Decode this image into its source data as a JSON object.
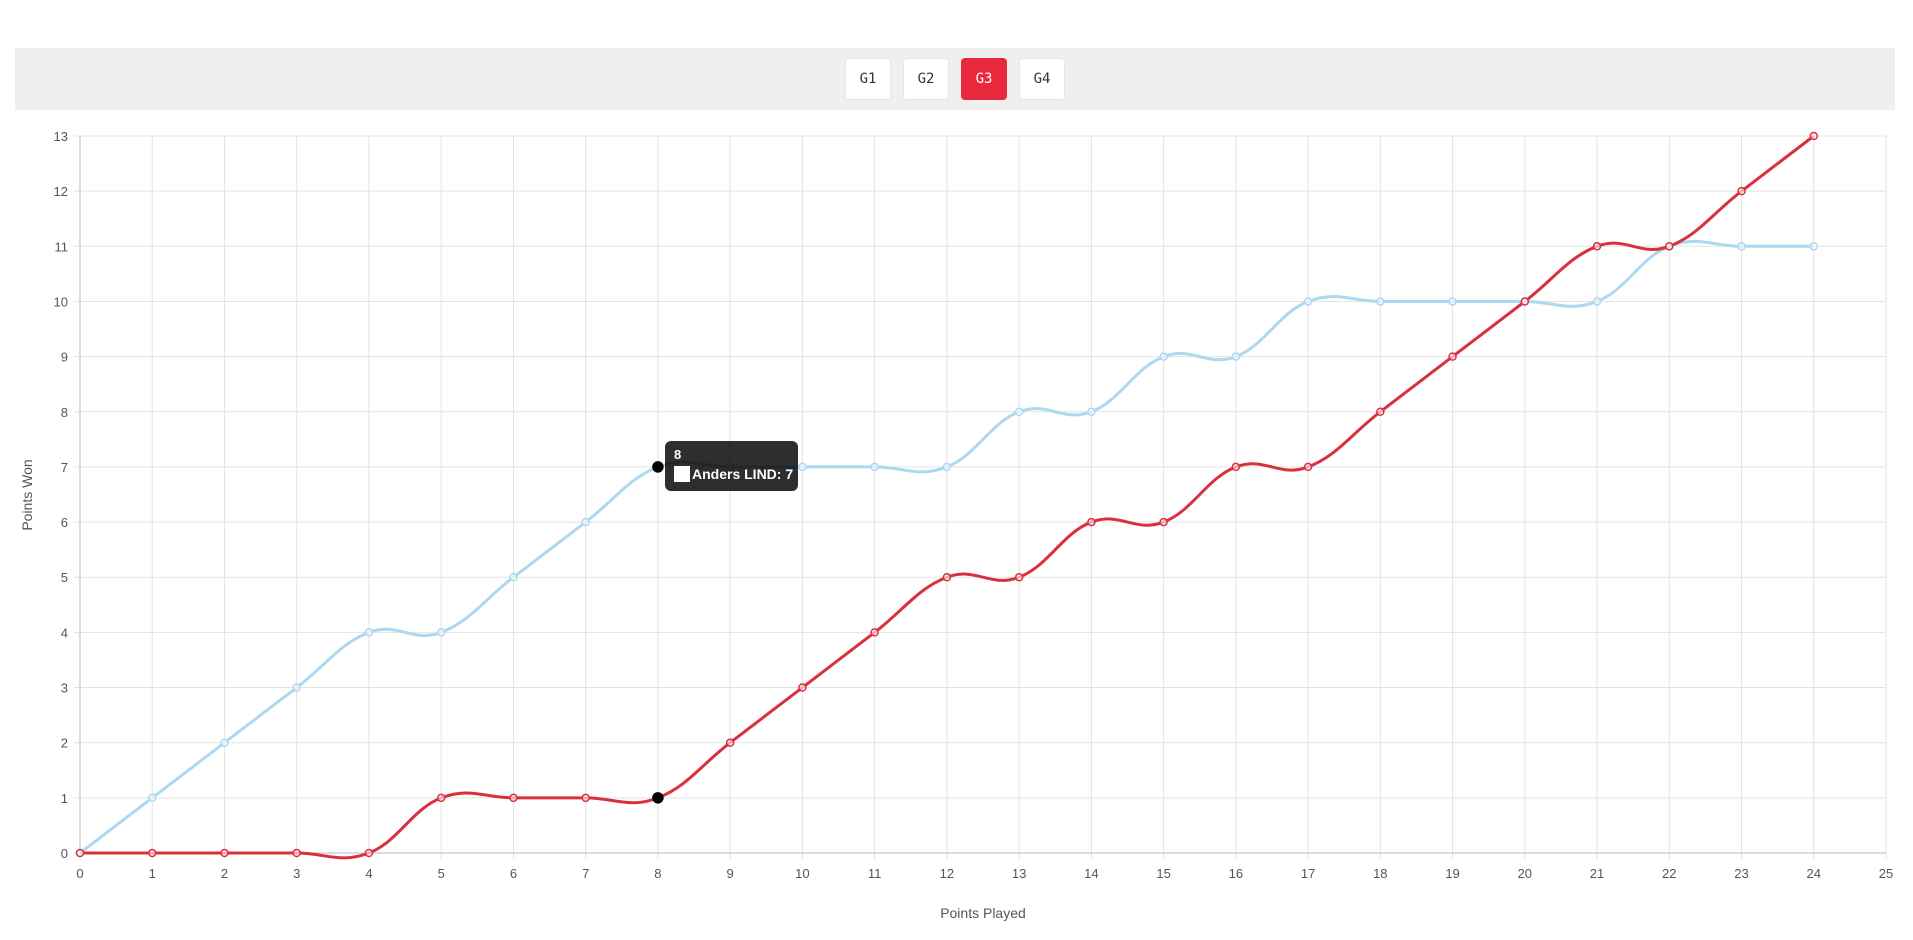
{
  "tabs": [
    {
      "label": "G1",
      "active": false
    },
    {
      "label": "G2",
      "active": false
    },
    {
      "label": "G3",
      "active": true
    },
    {
      "label": "G4",
      "active": false
    }
  ],
  "chart_data": {
    "type": "line",
    "xlabel": "Points Played",
    "ylabel": "Points Won",
    "xlim": [
      0,
      25
    ],
    "ylim": [
      0,
      13
    ],
    "grid": true,
    "x": [
      0,
      1,
      2,
      3,
      4,
      5,
      6,
      7,
      8,
      9,
      10,
      11,
      12,
      13,
      14,
      15,
      16,
      17,
      18,
      19,
      20,
      21,
      22,
      23,
      24
    ],
    "series": [
      {
        "name": "Anders LIND",
        "color": "#acd8f0",
        "values": [
          0,
          1,
          2,
          3,
          4,
          4,
          5,
          6,
          7,
          7,
          7,
          7,
          7,
          8,
          8,
          9,
          9,
          10,
          10,
          10,
          10,
          10,
          11,
          11,
          11
        ]
      },
      {
        "color": "#d9303f",
        "values": [
          0,
          0,
          0,
          0,
          0,
          1,
          1,
          1,
          1,
          2,
          3,
          4,
          5,
          5,
          6,
          6,
          7,
          7,
          8,
          9,
          10,
          11,
          11,
          12,
          13
        ]
      }
    ],
    "tooltip": {
      "title": "8",
      "label": "Anders LIND: 7",
      "x": 8
    }
  }
}
